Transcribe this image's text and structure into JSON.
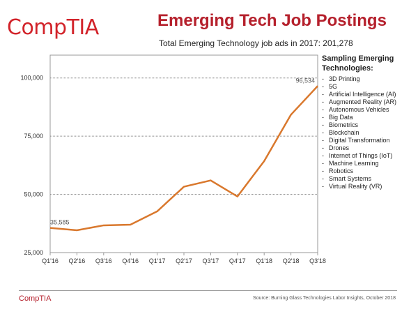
{
  "logo": "CompTIA",
  "footer": {
    "logo": "CompTIA",
    "source": "Source: Burning Glass Technologies Labor Insights, October 2018"
  },
  "legend": {
    "heading": "Sampling Emerging Technologies:",
    "items": [
      "3D Printing",
      "5G",
      "Artificial Intelligence (AI)",
      "Augmented Reality (AR)",
      "Autonomous Vehicles",
      "Big Data",
      "Biometrics",
      "Blockchain",
      "Digital Transformation",
      "Drones",
      "Internet of Things (IoT)",
      "Machine Learning",
      "Robotics",
      "Smart Systems",
      "Virtual Reality (VR)"
    ]
  },
  "chart_data": {
    "type": "line",
    "title": "Emerging Tech Job Postings",
    "subtitle": "Total Emerging Technology job ads in 2017: 201,278",
    "categories": [
      "Q1'16",
      "Q2'16",
      "Q3'16",
      "Q4'16",
      "Q1'17",
      "Q2'17",
      "Q3'17",
      "Q4'17",
      "Q1'18",
      "Q2'18",
      "Q3'18"
    ],
    "values": [
      35585,
      34600,
      36700,
      37000,
      42700,
      53300,
      56000,
      49100,
      64300,
      84200,
      96534
    ],
    "data_labels": [
      {
        "index": 0,
        "text": "35,585"
      },
      {
        "index": 10,
        "text": "96,534"
      }
    ],
    "yticks": [
      25000,
      50000,
      75000,
      100000
    ],
    "ytick_labels": [
      "25,000",
      "50,000",
      "75,000",
      "100,000"
    ],
    "ylim": [
      25000,
      105000
    ],
    "grid": "horizontal dotted",
    "line_color": "#d9782d"
  }
}
